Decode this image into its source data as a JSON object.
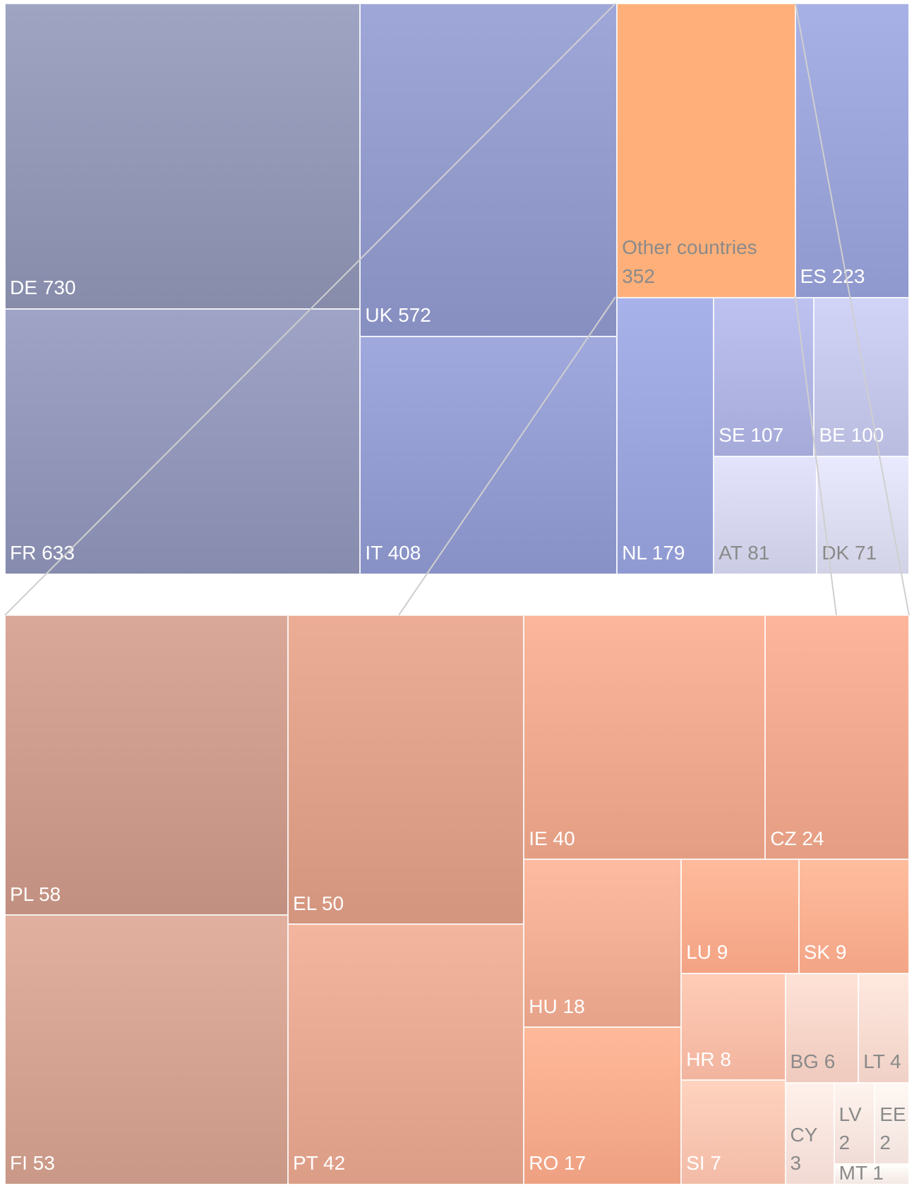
{
  "chart_data": {
    "type": "treemap",
    "main": [
      {
        "code": "DE",
        "label": "DE 730",
        "value": 730,
        "color": "#9196b5"
      },
      {
        "code": "FR",
        "label": "FR 633",
        "value": 633,
        "color": "#9196b8"
      },
      {
        "code": "UK",
        "label": "UK 572",
        "value": 572,
        "color": "#9199cb"
      },
      {
        "code": "IT",
        "label": "IT 408",
        "value": 408,
        "color": "#929bcf"
      },
      {
        "code": "OTHER",
        "label": "Other countries\n352",
        "value": 352,
        "color": "#ffb07a"
      },
      {
        "code": "ES",
        "label": "ES 223",
        "value": 223,
        "color": "#99a3d7"
      },
      {
        "code": "NL",
        "label": "NL 179",
        "value": 179,
        "color": "#9aa4dc"
      },
      {
        "code": "SE",
        "label": "SE 107",
        "value": 107,
        "color": "#afb4e2"
      },
      {
        "code": "BE",
        "label": "BE 100",
        "value": 100,
        "color": "#c3c6e9"
      },
      {
        "code": "AT",
        "label": "AT 81",
        "value": 81,
        "color": "#d5d6ee"
      },
      {
        "code": "DK",
        "label": "DK 71",
        "value": 71,
        "color": "#dcdcf0"
      }
    ],
    "other": [
      {
        "code": "PL",
        "label": "PL 58",
        "value": 58,
        "color": "#cc9a8b"
      },
      {
        "code": "FI",
        "label": "FI 53",
        "value": 53,
        "color": "#d3a291"
      },
      {
        "code": "EL",
        "label": "EL 50",
        "value": 50,
        "color": "#de9f88"
      },
      {
        "code": "PT",
        "label": "PT 42",
        "value": 42,
        "color": "#e6a791"
      },
      {
        "code": "IE",
        "label": "IE 40",
        "value": 40,
        "color": "#eea88e"
      },
      {
        "code": "CZ",
        "label": "CZ 24",
        "value": 24,
        "color": "#efa88d"
      },
      {
        "code": "HU",
        "label": "HU 18",
        "value": 18,
        "color": "#f0ad93"
      },
      {
        "code": "RO",
        "label": "RO 17",
        "value": 17,
        "color": "#f8ab8c"
      },
      {
        "code": "LU",
        "label": "LU 9",
        "value": 9,
        "color": "#fdad8e"
      },
      {
        "code": "SK",
        "label": "SK 9",
        "value": 9,
        "color": "#fdaf90"
      },
      {
        "code": "HR",
        "label": "HR 8",
        "value": 8,
        "color": "#fcbea8"
      },
      {
        "code": "SI",
        "label": "SI 7",
        "value": 7,
        "color": "#fcc5b1"
      },
      {
        "code": "BG",
        "label": "BG 6",
        "value": 6,
        "color": "#f9d4c8"
      },
      {
        "code": "LT",
        "label": "LT 4",
        "value": 4,
        "color": "#fadbd1"
      },
      {
        "code": "CY",
        "label": "CY\n3",
        "value": 3,
        "color": "#fbe3dc"
      },
      {
        "code": "LV",
        "label": "LV\n2",
        "value": 2,
        "color": "#fbe6e0"
      },
      {
        "code": "EE",
        "label": "EE\n2",
        "value": 2,
        "color": "#fcebe6"
      },
      {
        "code": "MT",
        "label": "MT 1",
        "value": 1,
        "color": "#fdf1ed"
      }
    ]
  }
}
